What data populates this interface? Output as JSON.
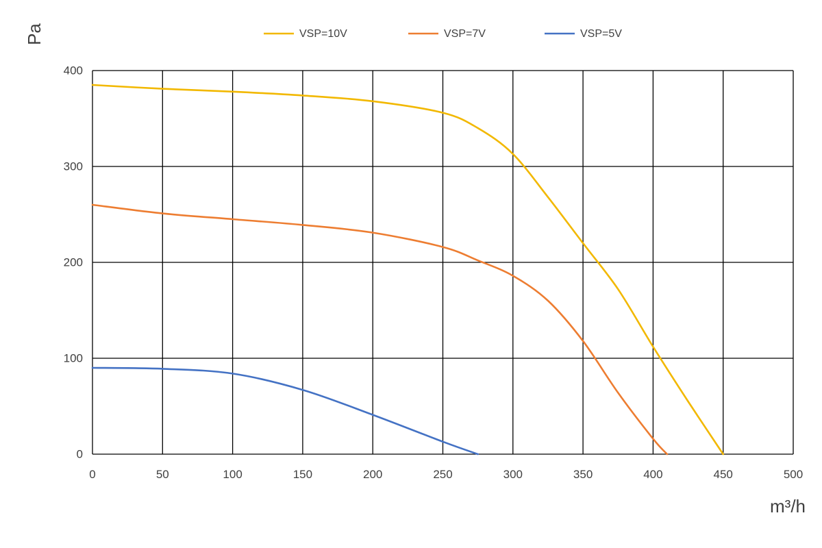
{
  "chart_data": {
    "type": "line",
    "title": "",
    "xlabel": "m³/h",
    "ylabel": "Pa",
    "xlim": [
      0,
      500
    ],
    "ylim": [
      0,
      400
    ],
    "x_ticks": [
      0,
      50,
      100,
      150,
      200,
      250,
      300,
      350,
      400,
      450,
      500
    ],
    "y_ticks": [
      0,
      100,
      200,
      300,
      400
    ],
    "grid": true,
    "legend_position": "top",
    "series": [
      {
        "name": "VSP=10V",
        "color": "#F2B800",
        "points": [
          [
            0,
            385
          ],
          [
            50,
            381
          ],
          [
            100,
            378
          ],
          [
            150,
            374
          ],
          [
            200,
            368
          ],
          [
            250,
            356
          ],
          [
            275,
            340
          ],
          [
            300,
            313
          ],
          [
            325,
            268
          ],
          [
            350,
            220
          ],
          [
            375,
            172
          ],
          [
            400,
            112
          ],
          [
            425,
            55
          ],
          [
            450,
            0
          ]
        ]
      },
      {
        "name": "VSP=7V",
        "color": "#ED7D31",
        "points": [
          [
            0,
            260
          ],
          [
            50,
            251
          ],
          [
            100,
            245
          ],
          [
            150,
            239
          ],
          [
            200,
            231
          ],
          [
            250,
            216
          ],
          [
            275,
            202
          ],
          [
            300,
            186
          ],
          [
            325,
            160
          ],
          [
            350,
            118
          ],
          [
            375,
            64
          ],
          [
            400,
            16
          ],
          [
            410,
            0
          ]
        ]
      },
      {
        "name": "VSP=5V",
        "color": "#4472C4",
        "points": [
          [
            0,
            90
          ],
          [
            50,
            89
          ],
          [
            100,
            84
          ],
          [
            150,
            67
          ],
          [
            200,
            41
          ],
          [
            250,
            13
          ],
          [
            275,
            0
          ]
        ]
      }
    ]
  }
}
